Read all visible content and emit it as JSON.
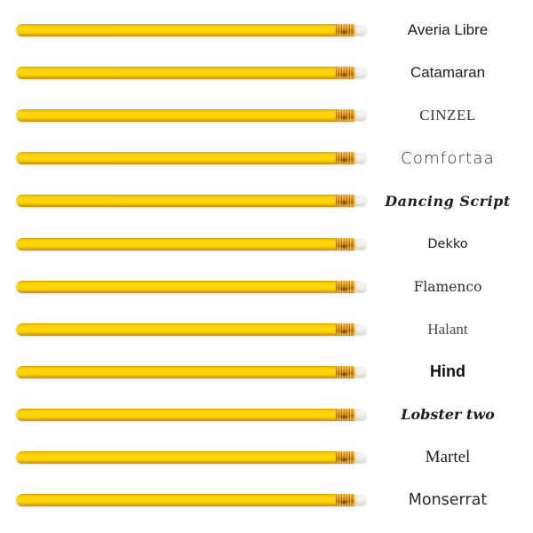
{
  "page": {
    "description": "Font specimen list: each row shows a yellow pencil graphic followed by a font name rendered in that typeface",
    "background_color": "#ffffff"
  },
  "pencil": {
    "body_color": "#FFD40A",
    "body_shadow_color": "#C69200",
    "ferrule_color": "#E2A02A",
    "ferrule_ridge_color": "#8A5200",
    "eraser_color": "#F2F0EA"
  },
  "rows": [
    {
      "label": "Averia Libre",
      "style": "averia"
    },
    {
      "label": "Catamaran",
      "style": "catamaran"
    },
    {
      "label": "CINZEL",
      "style": "cinzel"
    },
    {
      "label": "Comfortaa",
      "style": "comfortaa"
    },
    {
      "label": "Dancing Script",
      "style": "dancing"
    },
    {
      "label": "Dekko",
      "style": "dekko"
    },
    {
      "label": "Flamenco",
      "style": "flamenco"
    },
    {
      "label": "Halant",
      "style": "halant"
    },
    {
      "label": "Hind",
      "style": "hind"
    },
    {
      "label": "Lobster two",
      "style": "lobster"
    },
    {
      "label": "Martel",
      "style": "martel"
    },
    {
      "label": "Monserrat",
      "style": "monserrat"
    }
  ]
}
